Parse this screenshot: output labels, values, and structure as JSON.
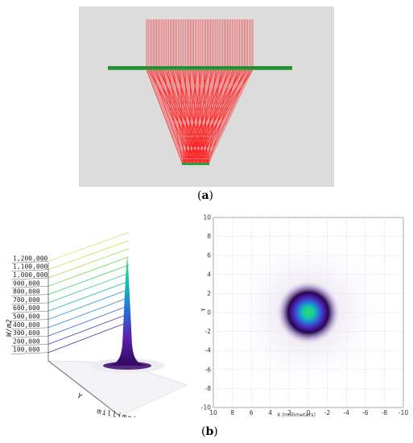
{
  "figure": {
    "panel_a_label": "a",
    "panel_b_label": "b"
  },
  "panel_a": {
    "background": "#dcdcdc",
    "ray_color": "#ff1a1a",
    "plate_color": "#2e9e3e",
    "ray_count": 64
  },
  "panel_b_surface": {
    "z_axis_label": "W/m2",
    "z_ticks": [
      "100,000",
      "200,000",
      "300,000",
      "400,000",
      "500,000",
      "600,000",
      "700,000",
      "800,000",
      "900,000",
      "1,000,000",
      "1,100,000",
      "1,200,000"
    ],
    "y_axis_label": "Y",
    "x_axis_label": "millimeters",
    "peak_colors": [
      "#3b0b6b",
      "#5b1fb0",
      "#2a6bd8",
      "#10c0c0",
      "#40e040"
    ]
  },
  "panel_b_map": {
    "xlabel": "X (millimeters)",
    "ylabel": "Y",
    "x_ticks": [
      "10",
      "8",
      "6",
      "4",
      "2",
      "0",
      "-2",
      "-4",
      "-6",
      "-8",
      "-10"
    ],
    "y_ticks": [
      "10",
      "8",
      "6",
      "4",
      "2",
      "0",
      "-2",
      "-4",
      "-6",
      "-8",
      "-10"
    ]
  },
  "chart_data": {
    "type": "heatmap",
    "title": "",
    "xlabel": "X (millimeters)",
    "ylabel": "Y",
    "xlim": [
      10,
      -10
    ],
    "ylim": [
      -10,
      10
    ],
    "z_unit": "W/m2",
    "z_max": 1200000,
    "distribution": "gaussian",
    "center": [
      0,
      0
    ],
    "spot_radius_mm": 1.8,
    "grid": true
  }
}
